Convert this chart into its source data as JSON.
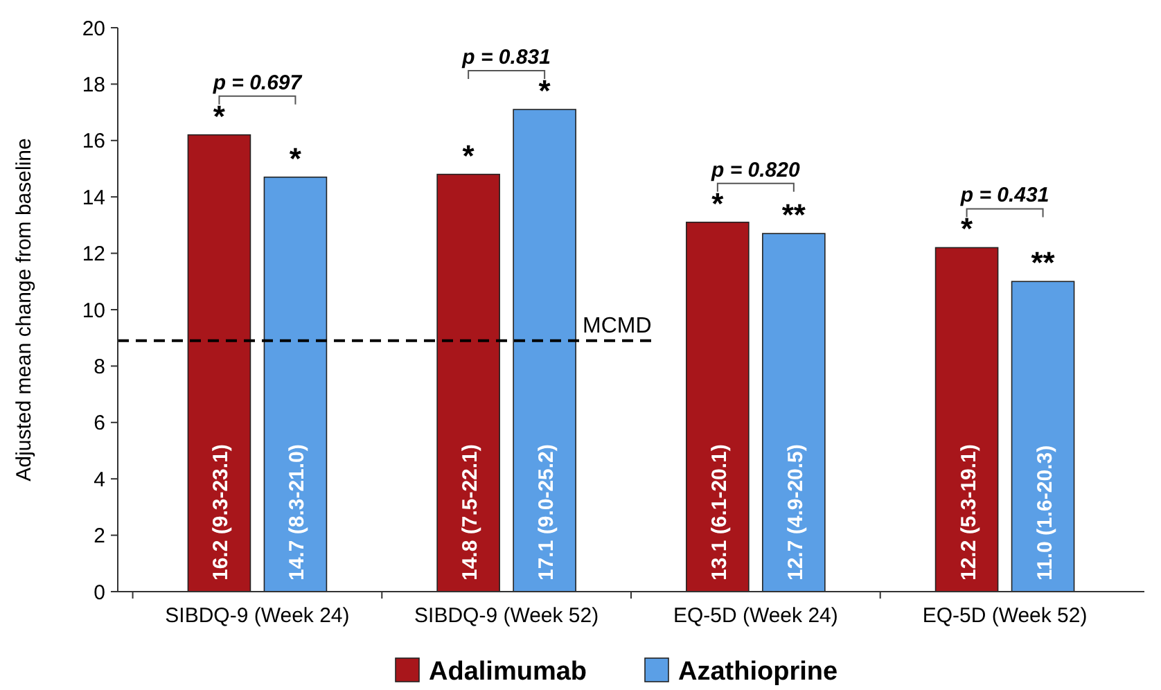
{
  "chart_data": {
    "type": "bar",
    "ylabel": "Adjusted mean change from baseline",
    "categories": [
      "SIBDQ-9 (Week 24)",
      "SIBDQ-9 (Week 52)",
      "EQ-5D (Week 24)",
      "EQ-5D (Week 52)"
    ],
    "series": [
      {
        "name": "Adalimumab",
        "color": "#a8161b",
        "values": [
          16.2,
          14.8,
          13.1,
          12.2
        ],
        "value_labels": [
          "16.2 (9.3-23.1)",
          "14.8 (7.5-22.1)",
          "13.1 (6.1-20.1)",
          "12.2 (5.3-19.1)"
        ]
      },
      {
        "name": "Azathioprine",
        "color": "#5b9fe6",
        "values": [
          14.7,
          17.1,
          12.7,
          11.0
        ],
        "value_labels": [
          "14.7 (8.3-21.0)",
          "17.1 (9.0-25.2)",
          "12.7 (4.9-20.5)",
          "11.0 (1.6-20.3)"
        ]
      }
    ],
    "ylim": [
      0,
      20
    ],
    "yticks": [
      0,
      2,
      4,
      6,
      8,
      10,
      12,
      14,
      16,
      18,
      20
    ],
    "grid": false,
    "legend": "bottom",
    "ref_lines": [
      {
        "axis": "y",
        "value": 8.9,
        "label": "MCMD",
        "color": "#000000",
        "line_style": "dashed"
      }
    ],
    "annotations": [
      "*",
      "*",
      "*",
      "*",
      "*",
      "**",
      "*",
      "**",
      "p = 0.697",
      "p = 0.831",
      "p = 0.820",
      "p = 0.431"
    ]
  }
}
